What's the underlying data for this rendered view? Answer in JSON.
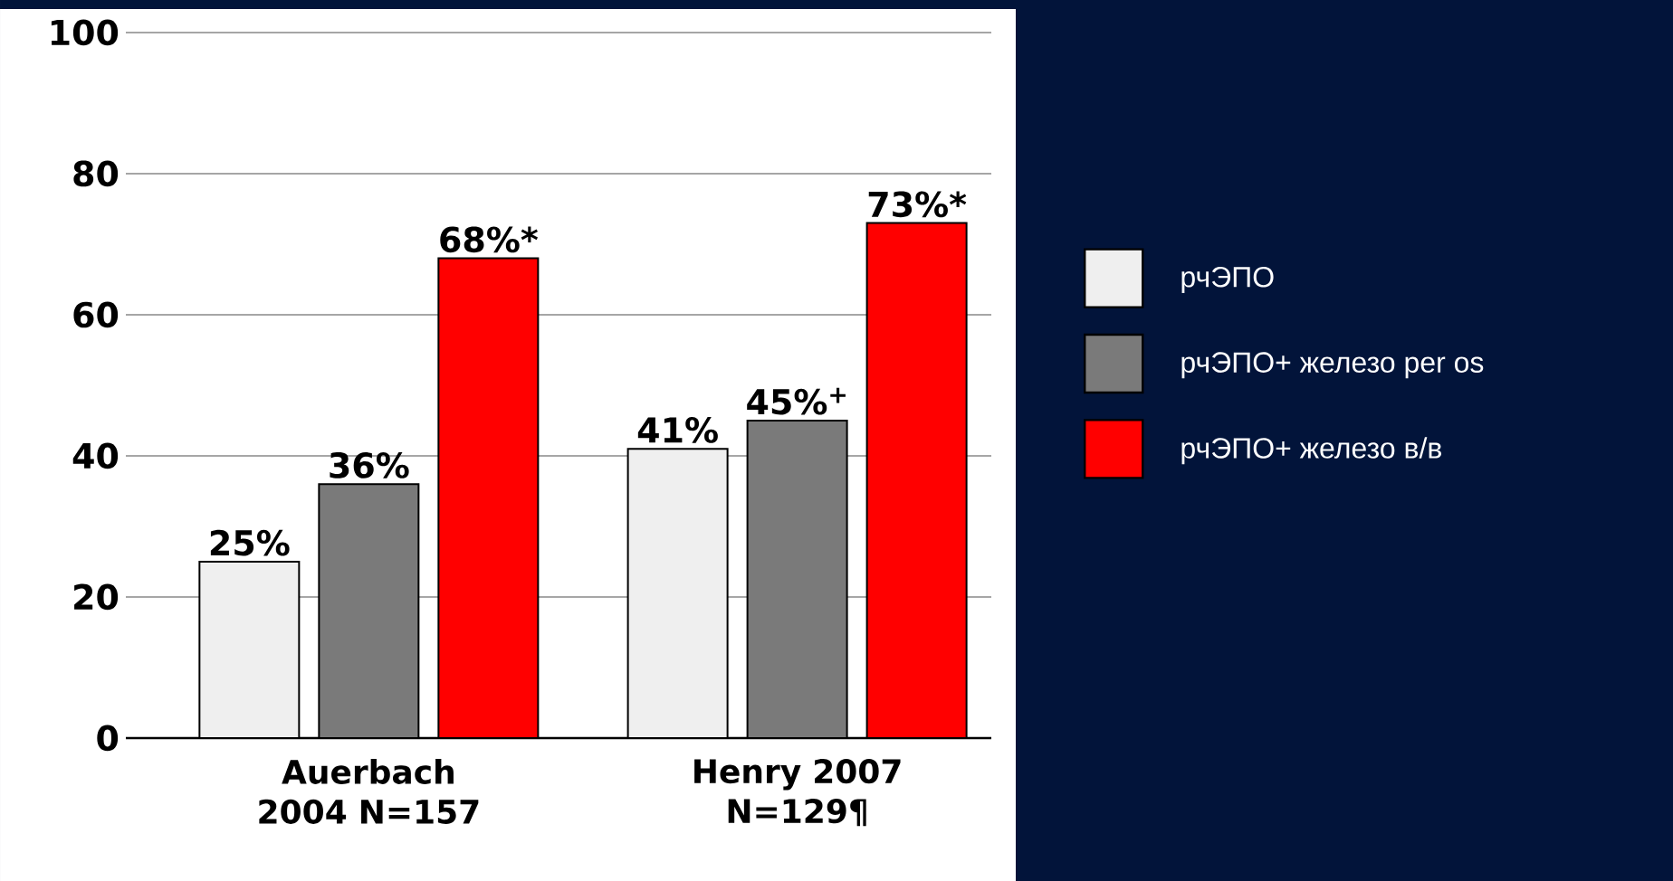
{
  "chart_data": {
    "type": "bar",
    "categories": [
      "Auerbach 2004 N=157",
      "Henry 2007 N=129¶"
    ],
    "series": [
      {
        "name": "рчЭПО",
        "color": "#efefef",
        "values": [
          25,
          41
        ],
        "value_labels": [
          "25%",
          "41%"
        ]
      },
      {
        "name": "рчЭПО+ железо per os",
        "color": "#7a7a7a",
        "values": [
          36,
          45
        ],
        "value_labels": [
          "36%",
          "45%$^{+}$"
        ]
      },
      {
        "name": "рчЭПО+ железо в/в",
        "color": "#ff0000",
        "values": [
          68,
          73
        ],
        "value_labels": [
          "68%*",
          "73%*"
        ]
      }
    ],
    "ylim": [
      0,
      100
    ],
    "yticks": [
      0,
      20,
      40,
      60,
      80,
      100
    ],
    "grid": "y",
    "legend": "right"
  }
}
